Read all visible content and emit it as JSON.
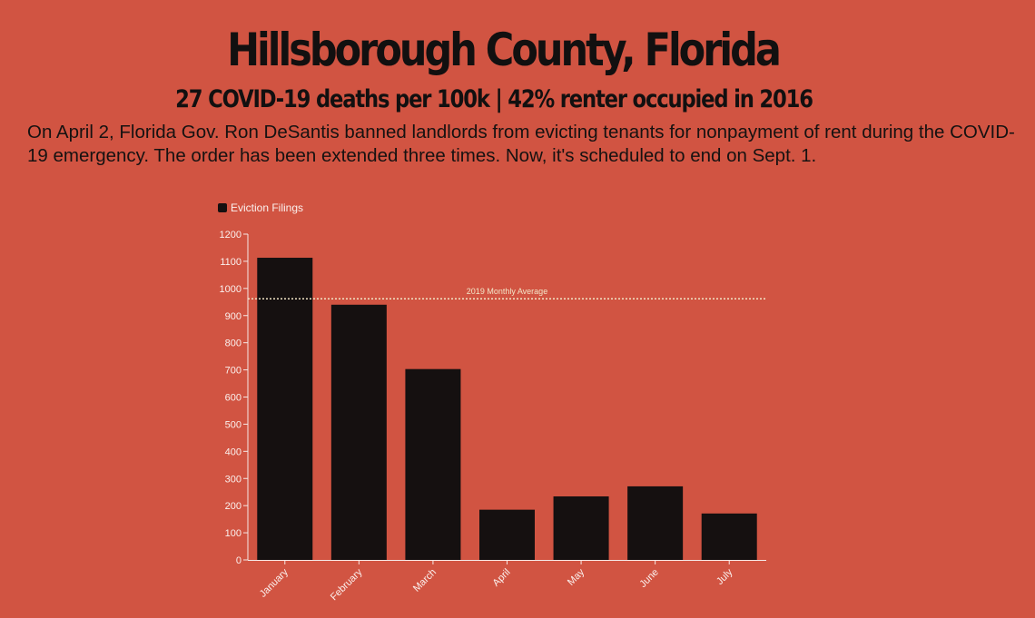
{
  "header": {
    "title": "Hillsborough County, Florida",
    "subtitle": "27 COVID-19 deaths per 100k | 42% renter occupied in 2016",
    "intro": "On April 2, Florida Gov. Ron DeSantis banned landlords from evicting tenants for nonpayment of rent during the COVID-19 emergency. The order has been extended three times. Now, it's scheduled to end on Sept. 1."
  },
  "colors": {
    "background": "#d15442",
    "bar": "#151010",
    "axis": "#f5e9e6",
    "reference_line": "#f2e6c8",
    "text": "#121010"
  },
  "chart_data": {
    "type": "bar",
    "categories": [
      "January",
      "February",
      "March",
      "April",
      "May",
      "June",
      "July"
    ],
    "series": [
      {
        "name": "Eviction Filings",
        "values": [
          1113,
          940,
          703,
          185,
          234,
          271,
          171
        ]
      }
    ],
    "ylim": [
      0,
      1200
    ],
    "yticks": [
      0,
      100,
      200,
      300,
      400,
      500,
      600,
      700,
      800,
      900,
      1000,
      1100,
      1200
    ],
    "reference_line": {
      "label": "2019 Monthly Average",
      "value": 962
    },
    "legend_position": "top-left",
    "grid": false
  }
}
